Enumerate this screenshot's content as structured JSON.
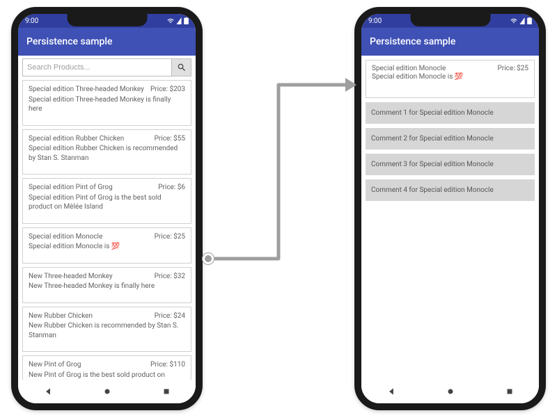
{
  "statusbar": {
    "time": "9:00"
  },
  "appbar": {
    "title": "Persistence sample"
  },
  "search": {
    "placeholder": "Search Products..."
  },
  "price_prefix": "Price: $",
  "products": [
    {
      "title": "Special edition Three-headed Monkey",
      "price": "203",
      "desc": "Special edition Three-headed Monkey is finally here"
    },
    {
      "title": "Special edition Rubber Chicken",
      "price": "55",
      "desc": "Special edition Rubber Chicken is recommended by Stan S. Stanman"
    },
    {
      "title": "Special edition Pint of Grog",
      "price": "6",
      "desc": "Special edition Pint of Grog is the best sold product on Mêlée Island"
    },
    {
      "title": "Special edition Monocle",
      "price": "25",
      "desc": "Special edition Monocle is 💯"
    },
    {
      "title": "New Three-headed Monkey",
      "price": "32",
      "desc": "New Three-headed Monkey is finally here"
    },
    {
      "title": "New Rubber Chicken",
      "price": "24",
      "desc": "New Rubber Chicken is recommended by Stan S. Stanman"
    },
    {
      "title": "New Pint of Grog",
      "price": "110",
      "desc": "New Pint of Grog is the best sold product on Mêlée Island"
    }
  ],
  "detail": {
    "title": "Special edition Monocle",
    "price": "25",
    "desc": "Special edition Monocle is 💯",
    "comments": [
      "Comment 1 for Special edition Monocle",
      "Comment 2 for Special edition Monocle",
      "Comment 3 for Special edition Monocle",
      "Comment 4 for Special edition Monocle"
    ]
  },
  "colors": {
    "primary": "#3f51b5",
    "primaryDark": "#303f9f",
    "commentBg": "#d6d6d6",
    "arrow": "#9e9e9e"
  }
}
